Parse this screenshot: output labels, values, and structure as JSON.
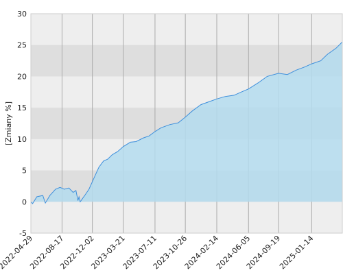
{
  "chart_data": {
    "type": "area",
    "y_label": "[Zmiany %]",
    "x": [
      "2022-04-29",
      "2022-05-05",
      "2022-05-20",
      "2022-06-10",
      "2022-06-19",
      "2022-07-05",
      "2022-07-25",
      "2022-08-10",
      "2022-08-25",
      "2022-09-10",
      "2022-09-25",
      "2022-10-05",
      "2022-10-12",
      "2022-10-16",
      "2022-10-20",
      "2022-11-05",
      "2022-11-20",
      "2022-12-10",
      "2022-12-25",
      "2023-01-10",
      "2023-01-25",
      "2023-02-10",
      "2023-03-01",
      "2023-03-21",
      "2023-04-15",
      "2023-05-05",
      "2023-06-01",
      "2023-06-20",
      "2023-07-11",
      "2023-08-01",
      "2023-09-01",
      "2023-10-01",
      "2023-10-26",
      "2023-11-20",
      "2023-12-20",
      "2024-01-20",
      "2024-02-14",
      "2024-03-15",
      "2024-04-15",
      "2024-05-10",
      "2024-06-05",
      "2024-07-10",
      "2024-08-10",
      "2024-09-19",
      "2024-10-20",
      "2024-11-20",
      "2024-12-20",
      "2025-01-14",
      "2025-02-15",
      "2025-03-10",
      "2025-04-10",
      "2025-05-02"
    ],
    "series": [
      {
        "color": "#3d8fdc",
        "fill": "#b4dcee",
        "values": [
          0,
          -0.3,
          0.8,
          1.0,
          -0.2,
          1.0,
          2.0,
          2.3,
          2.0,
          2.2,
          1.5,
          1.8,
          0.2,
          0.8,
          0.0,
          1.0,
          2.0,
          4.0,
          5.5,
          6.5,
          6.8,
          7.5,
          8.0,
          8.8,
          9.5,
          9.6,
          10.2,
          10.5,
          11.2,
          11.8,
          12.3,
          12.6,
          13.5,
          14.5,
          15.5,
          16.0,
          16.4,
          16.8,
          17.0,
          17.5,
          18.0,
          19.0,
          20.0,
          20.5,
          20.3,
          21.0,
          21.5,
          22.0,
          22.5,
          23.5,
          24.5,
          25.5
        ]
      }
    ],
    "xlim": [
      "2022-04-29",
      "2025-05-02"
    ],
    "xticks": [
      "2022-04-29",
      "2022-08-17",
      "2022-12-02",
      "2023-03-21",
      "2023-07-11",
      "2023-10-26",
      "2024-02-14",
      "2024-06-05",
      "2024-09-19",
      "2025-01-14"
    ],
    "ylim": [
      -5,
      30
    ],
    "yticks": [
      -5,
      0,
      5,
      10,
      15,
      20,
      25,
      30
    ],
    "grid": true
  }
}
